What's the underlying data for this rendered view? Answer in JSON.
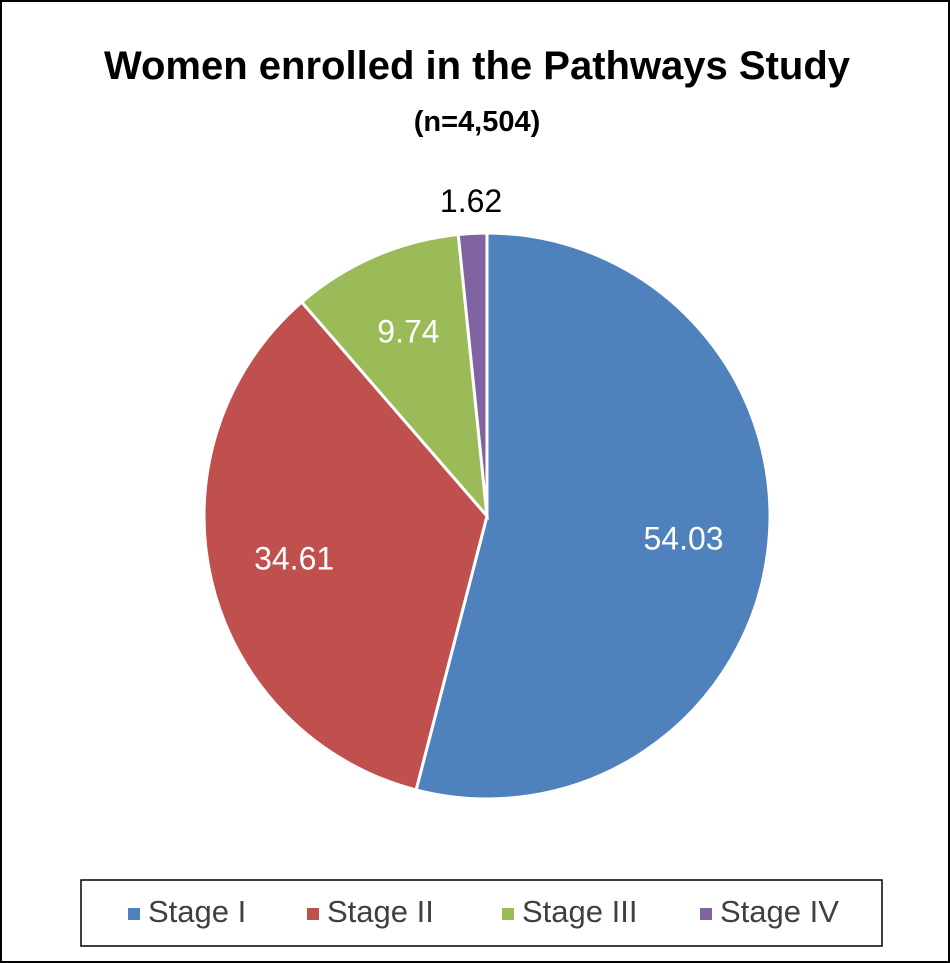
{
  "chart_data": {
    "type": "pie",
    "title": "Women enrolled in the Pathways Study",
    "subtitle": "(n=4,504)",
    "categories": [
      "Stage I",
      "Stage II",
      "Stage III",
      "Stage IV"
    ],
    "values": [
      54.03,
      34.61,
      9.74,
      1.62
    ],
    "colors": [
      "#4f81bd",
      "#c0504d",
      "#9bbb59",
      "#8064a2"
    ],
    "legend": "bottom"
  }
}
